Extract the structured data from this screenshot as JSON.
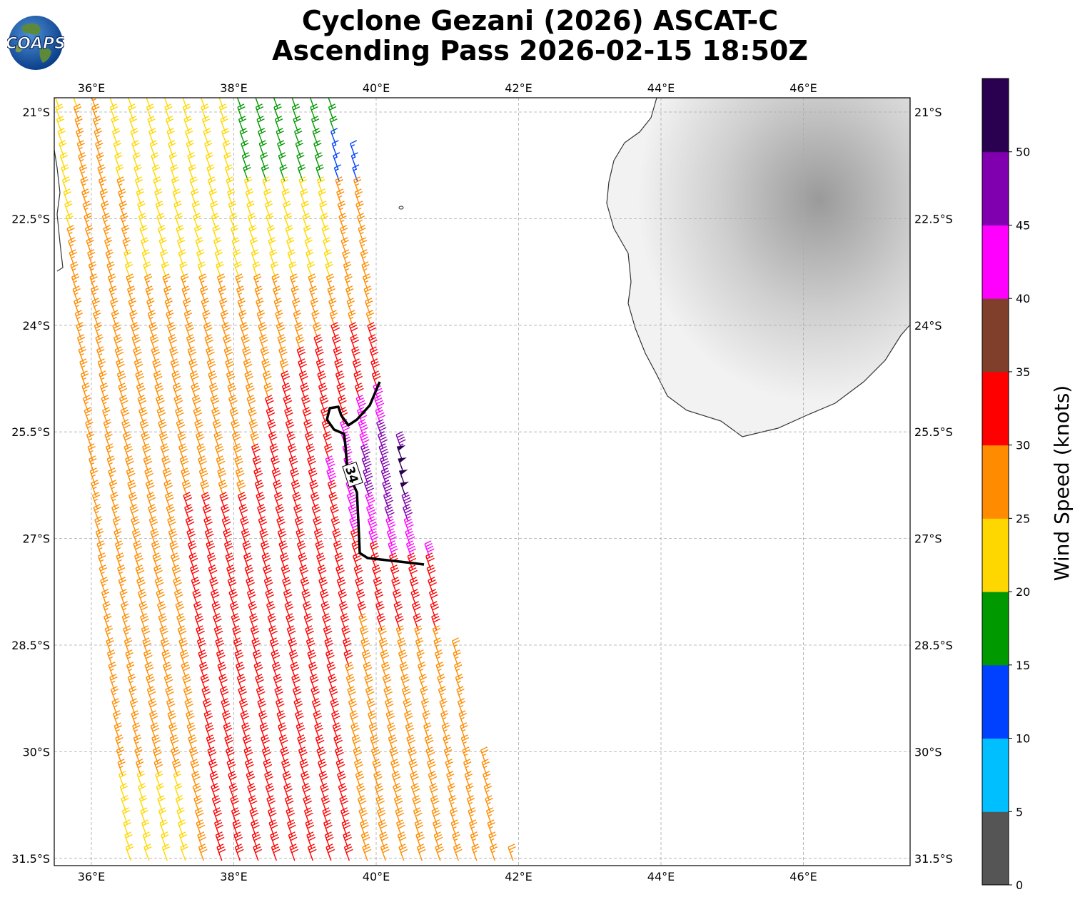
{
  "title_line1": "Cyclone Gezani (2026) ASCAT-C",
  "title_line2": "Ascending Pass 2026-02-15 18:50Z",
  "logo_text": "COAPS",
  "map": {
    "lon_range": [
      35.5,
      47.5
    ],
    "lat_range": [
      -31.6,
      -20.8
    ],
    "lon_ticks": [
      "36°E",
      "38°E",
      "40°E",
      "42°E",
      "44°E",
      "46°E"
    ],
    "lat_ticks": [
      "21°S",
      "22.5°S",
      "24°S",
      "25.5°S",
      "27°S",
      "28.5°S",
      "30°S",
      "31.5°S"
    ],
    "gridlines": true,
    "contour_label": "34",
    "land_names": []
  },
  "colorbar": {
    "label": "Wind Speed (knots)",
    "ticks": [
      "0",
      "5",
      "10",
      "15",
      "20",
      "25",
      "30",
      "35",
      "40",
      "45",
      "50"
    ],
    "bins": [
      {
        "min": 0,
        "max": 5,
        "color": "#555555"
      },
      {
        "min": 5,
        "max": 10,
        "color": "#00bfff"
      },
      {
        "min": 10,
        "max": 15,
        "color": "#0040ff"
      },
      {
        "min": 15,
        "max": 20,
        "color": "#009900"
      },
      {
        "min": 20,
        "max": 25,
        "color": "#ffd700"
      },
      {
        "min": 25,
        "max": 30,
        "color": "#ff8c00"
      },
      {
        "min": 30,
        "max": 35,
        "color": "#ff0000"
      },
      {
        "min": 35,
        "max": 40,
        "color": "#7f3f2a"
      },
      {
        "min": 40,
        "max": 45,
        "color": "#ff00ff"
      },
      {
        "min": 45,
        "max": 50,
        "color": "#8000b0"
      },
      {
        "min": 50,
        "max": 55,
        "color": "#2a0050"
      }
    ]
  }
}
